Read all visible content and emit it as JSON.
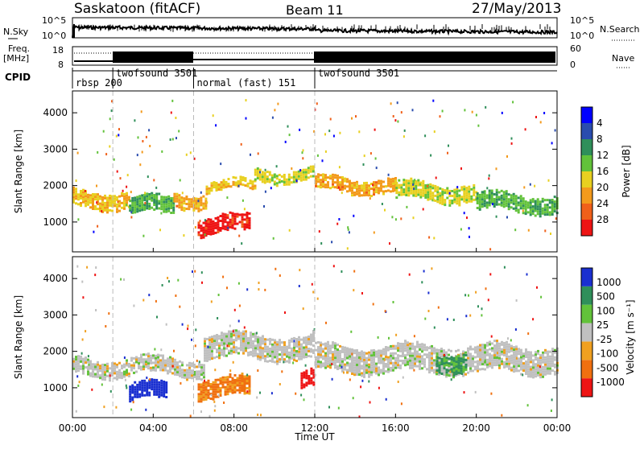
{
  "header": {
    "station": "Saskatoon (fitACF)",
    "beam": "Beam 11",
    "date": "27/May/2013"
  },
  "sky_panel": {
    "left_label": "N.Sky",
    "right_label": "N.Search",
    "left_ticks": [
      "10^5",
      "10^0"
    ],
    "right_ticks": [
      "10^5",
      "10^0"
    ]
  },
  "freq_panel": {
    "left_label_1": "Freq.",
    "left_label_2": "[MHz]",
    "right_label": "Nave",
    "left_ticks": [
      "18",
      "8"
    ],
    "right_ticks": [
      "60",
      "0"
    ]
  },
  "cpid": {
    "label": "CPID",
    "segments": [
      {
        "name": "rbsp 200",
        "start_hour": 0.0
      },
      {
        "name": "twofsound 3501",
        "start_hour": 2.0
      },
      {
        "name": "normal (fast) 151",
        "start_hour": 6.0
      },
      {
        "name": "twofsound 3501",
        "start_hour": 12.0
      }
    ]
  },
  "time_axis": {
    "label": "Time UT",
    "ticks": [
      "00:00",
      "04:00",
      "08:00",
      "12:00",
      "16:00",
      "20:00",
      "00:00"
    ]
  },
  "range_axis": {
    "label": "Slant Range [km]",
    "ticks": [
      "1000",
      "2000",
      "3000",
      "4000"
    ]
  },
  "power_colorbar": {
    "label": "Power [dB]",
    "ticks": [
      "4",
      "8",
      "12",
      "16",
      "20",
      "24",
      "28"
    ],
    "colors": [
      "#0000ff",
      "#2a4cae",
      "#2f8f5a",
      "#62c23a",
      "#e8d020",
      "#f39a1c",
      "#f0601a",
      "#ee1414"
    ]
  },
  "velocity_colorbar": {
    "label": "Velocity [m s⁻¹]",
    "ticks": [
      "1000",
      "500",
      "100",
      "25",
      "-25",
      "-100",
      "-500",
      "-1000"
    ],
    "colors": [
      "#1a2fd0",
      "#2f8f5a",
      "#62c23a",
      "#c0c0c0",
      "#f0a020",
      "#f07010",
      "#ee1414"
    ]
  },
  "chart_data": [
    {
      "type": "line",
      "title": "N.Sky / N.Search",
      "x_range_hours": [
        0,
        24
      ],
      "ylim": [
        1,
        100000
      ],
      "log_scale": true
    },
    {
      "type": "line",
      "title": "Freq. / Nave",
      "x_range_hours": [
        0,
        24
      ],
      "ylim_freq_mhz": [
        8,
        18
      ],
      "ylim_nave": [
        0,
        60
      ]
    },
    {
      "type": "heatmap",
      "title": "Power",
      "x_range_hours": [
        0,
        24
      ],
      "ylim_km": [
        180,
        4600
      ],
      "colorbar_range_db": [
        0,
        30
      ],
      "bands": [
        {
          "hours": [
            0,
            2.8
          ],
          "range_km": [
            1450,
            1850
          ],
          "value_db": 18
        },
        {
          "hours": [
            2.8,
            5.0
          ],
          "range_km": [
            1250,
            1650
          ],
          "value_db": 12
        },
        {
          "hours": [
            5.0,
            6.6
          ],
          "range_km": [
            1450,
            1800
          ],
          "value_db": 20
        },
        {
          "hours": [
            6.6,
            9.0
          ],
          "range_km": [
            1850,
            2100
          ],
          "value_db": 18
        },
        {
          "hours": [
            9.0,
            11.9
          ],
          "range_km": [
            2150,
            2450
          ],
          "value_db": 16
        },
        {
          "hours": [
            12.0,
            16.0
          ],
          "range_km": [
            1850,
            2200
          ],
          "value_db": 20
        },
        {
          "hours": [
            16.0,
            20.0
          ],
          "range_km": [
            1650,
            2050
          ],
          "value_db": 16
        },
        {
          "hours": [
            20.0,
            24.0
          ],
          "range_km": [
            1350,
            1750
          ],
          "value_db": 12
        },
        {
          "hours": [
            6.2,
            8.8
          ],
          "range_km": [
            700,
            1150
          ],
          "value_db": 28
        }
      ]
    },
    {
      "type": "heatmap",
      "title": "Velocity",
      "x_range_hours": [
        0,
        24
      ],
      "ylim_km": [
        180,
        4600
      ],
      "colorbar_range_ms": [
        -1000,
        1000
      ],
      "bands": [
        {
          "hours": [
            0,
            6.5
          ],
          "range_km": [
            1350,
            1800
          ],
          "value_ms": 0
        },
        {
          "hours": [
            6.5,
            12.0
          ],
          "range_km": [
            1850,
            2450
          ],
          "value_ms": 0
        },
        {
          "hours": [
            12.0,
            24.0
          ],
          "range_km": [
            1450,
            2150
          ],
          "value_ms": 0
        },
        {
          "hours": [
            6.2,
            8.8
          ],
          "range_km": [
            750,
            1250
          ],
          "value_ms": -500
        },
        {
          "hours": [
            11.3,
            12.0
          ],
          "range_km": [
            1050,
            1450
          ],
          "value_ms": -1000
        },
        {
          "hours": [
            18.0,
            19.5
          ],
          "range_km": [
            1500,
            2000
          ],
          "value_ms": 500
        },
        {
          "hours": [
            2.8,
            4.6
          ],
          "range_km": [
            700,
            1100
          ],
          "value_ms": 1000
        }
      ]
    }
  ]
}
